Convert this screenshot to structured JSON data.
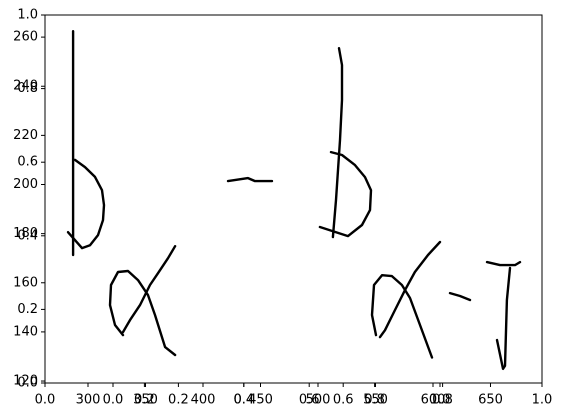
{
  "chart_data": {
    "type": "line",
    "color": "#000000",
    "xlim": [
      262.6,
      694.8
    ],
    "xticks": [
      300,
      350,
      400,
      450,
      500,
      550,
      600,
      650
    ],
    "ylim": [
      119.2,
      269
    ],
    "yticks": [
      120,
      140,
      160,
      180,
      200,
      220,
      240,
      260
    ],
    "frame_axes": {
      "xlim": [
        0,
        1
      ],
      "xticks": [
        {
          "value": 0,
          "label": "0.0"
        },
        0.2,
        0.4,
        0.6,
        0.8,
        {
          "value": 1,
          "label": "1.0"
        }
      ],
      "ylim": [
        0,
        1
      ],
      "yticks": [
        {
          "value": 0,
          "label": "0.0"
        },
        0.2,
        0.4,
        0.6,
        0.8,
        {
          "value": 1,
          "label": "1.0"
        }
      ]
    },
    "inset_axes": {
      "xlim": [
        0,
        1
      ],
      "xticks": [
        {
          "value": 0,
          "label": "0.0"
        },
        0.2,
        0.4,
        0.6,
        0.8,
        {
          "value": 1,
          "label": "1.0"
        }
      ]
    },
    "series": [
      {
        "x": [
          287,
          287
        ],
        "y": [
          262.4,
          171.3
        ]
      },
      {
        "x": [
          288.7,
          297.4,
          306.1,
          312.2,
          313.9,
          313,
          308.7,
          301.7,
          294.8,
          282.6
        ],
        "y": [
          210,
          207.1,
          203.1,
          197.7,
          191.6,
          185.5,
          179.4,
          175.3,
          174.1,
          180.6
        ]
      },
      {
        "x": [
          375.7,
          369.6,
          360.9,
          353.9,
          345.2,
          336.5,
          330.4
        ],
        "y": [
          174.9,
          170,
          163.9,
          159.1,
          150.9,
          144.8,
          139.9
        ]
      },
      {
        "x": [
          330.4,
          323.5,
          319.1,
          320,
          326.1,
          334.8,
          343.5,
          352.2,
          358.3,
          367,
          375.7
        ],
        "y": [
          138.7,
          142.8,
          150.9,
          159.1,
          164.4,
          164.8,
          161.1,
          155,
          146.9,
          133.8,
          130.6
        ]
      },
      {
        "x": [
          421.7,
          439.1,
          445.2,
          460
        ],
        "y": [
          201.4,
          202.6,
          201.4,
          201.4
        ]
      },
      {
        "x": [
          518.3,
          520.9,
          520.9,
          519.1,
          515.7,
          513
        ],
        "y": [
          255.5,
          248.6,
          234.4,
          218.1,
          193.7,
          178.6
        ]
      },
      {
        "x": [
          511.3,
          520.9,
          532.2,
          540.9,
          546.1,
          545.2,
          538.3,
          526.1,
          501.7
        ],
        "y": [
          213.2,
          212,
          207.9,
          203,
          197.7,
          189.6,
          183.5,
          179,
          182.7
        ]
      },
      {
        "x": [
          606.1,
          595.7,
          584.3,
          575.7,
          567,
          558.3,
          553.9
        ],
        "y": [
          176.6,
          171.3,
          164.4,
          157,
          148.9,
          140.7,
          137.9
        ]
      },
      {
        "x": [
          550.4,
          547,
          548.7,
          555.7,
          564.3,
          573,
          580,
          588.7,
          599.1
        ],
        "y": [
          138.7,
          146.9,
          159.1,
          163.1,
          162.7,
          159.1,
          153.8,
          142.8,
          129.6
        ]
      },
      {
        "x": [
          614.8,
          623.5,
          632.2
        ],
        "y": [
          155.8,
          154.6,
          153
        ]
      },
      {
        "x": [
          647,
          658.3,
          671.3,
          675.7
        ],
        "y": [
          168.4,
          167.2,
          167.2,
          168.4
        ]
      },
      {
        "x": [
          667,
          664.3,
          662.6,
          660.9,
          655.7
        ],
        "y": [
          166,
          153,
          126.2,
          125,
          136.7
        ]
      }
    ]
  }
}
